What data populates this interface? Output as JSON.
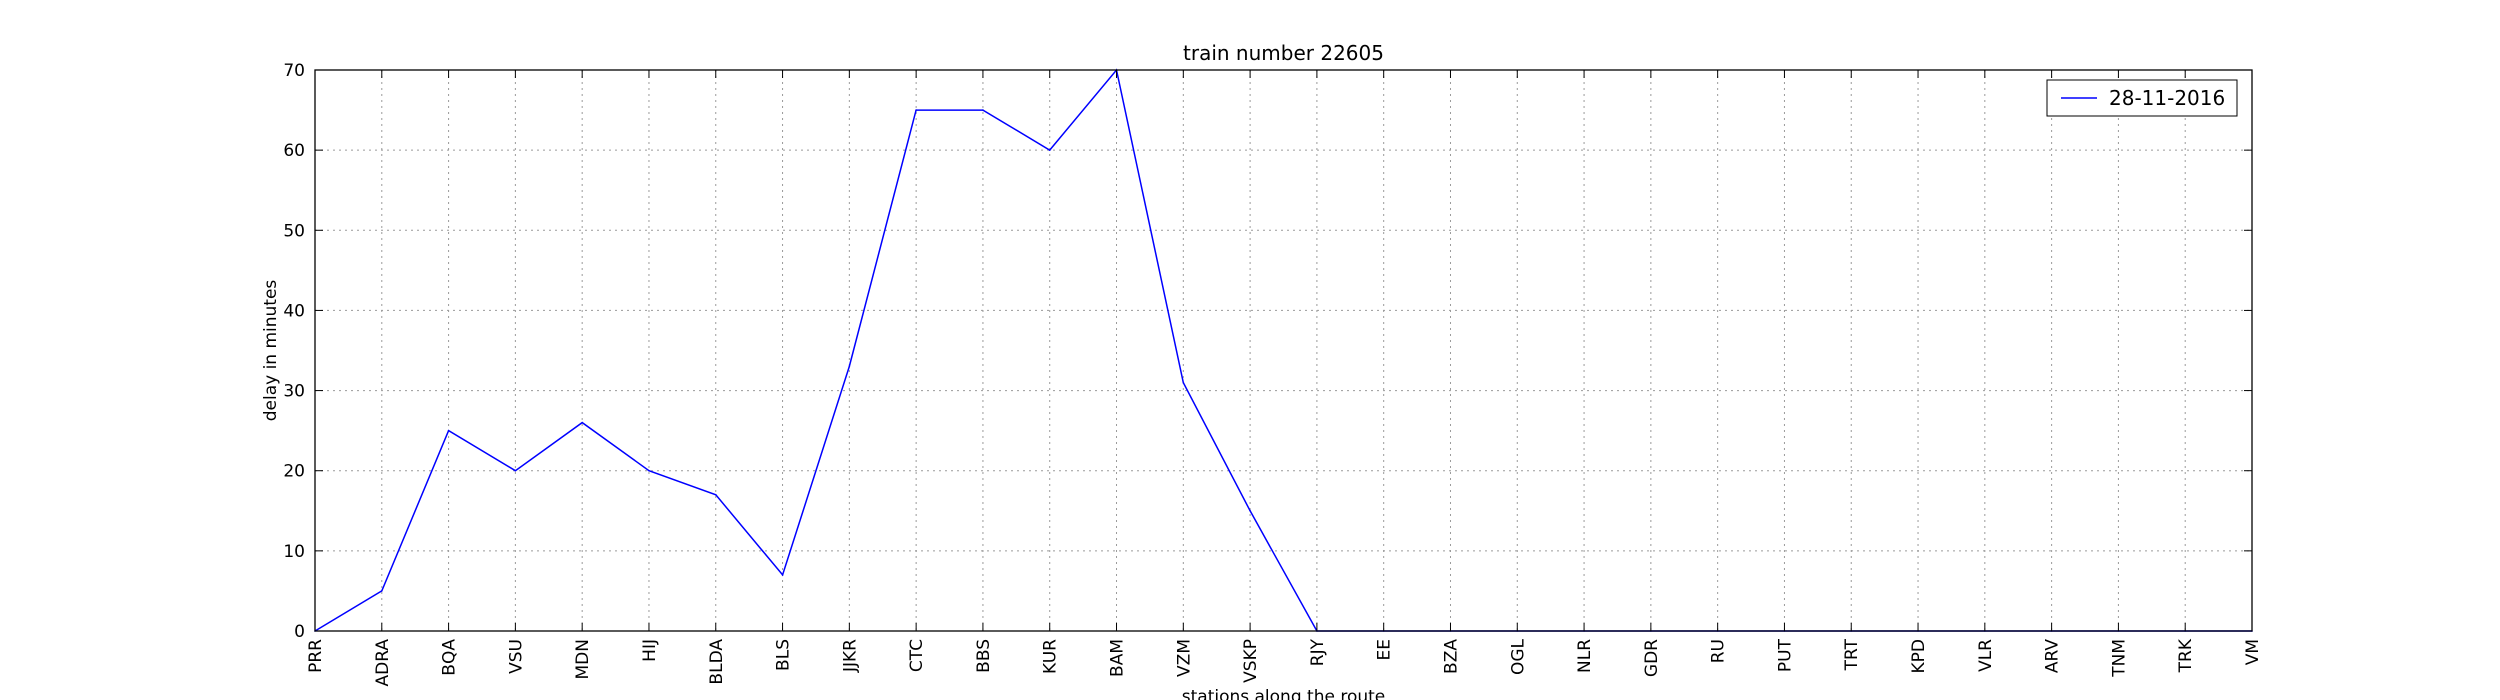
{
  "chart_data": {
    "type": "line",
    "title": "train number 22605",
    "xlabel": "stations along the route",
    "ylabel": "delay in minutes",
    "ylim": [
      0,
      70
    ],
    "yticks": [
      0,
      10,
      20,
      30,
      40,
      50,
      60,
      70
    ],
    "grid": true,
    "legend_position": "top-right",
    "categories": [
      "PRR",
      "ADRA",
      "BQA",
      "VSU",
      "MDN",
      "HIJ",
      "BLDA",
      "BLS",
      "JJKR",
      "CTC",
      "BBS",
      "KUR",
      "BAM",
      "VZM",
      "VSKP",
      "RJY",
      "EE",
      "BZA",
      "OGL",
      "NLR",
      "GDR",
      "RU",
      "PUT",
      "TRT",
      "KPD",
      "VLR",
      "ARV",
      "TNM",
      "TRK",
      "VM"
    ],
    "series": [
      {
        "name": "28-11-2016",
        "color": "#0000ff",
        "values": [
          0,
          5,
          25,
          20,
          26,
          20,
          17,
          7,
          33,
          65,
          65,
          60,
          70,
          31,
          15,
          0,
          0,
          0,
          0,
          0,
          0,
          0,
          0,
          0,
          0,
          0,
          0,
          0,
          0,
          0
        ]
      }
    ]
  }
}
